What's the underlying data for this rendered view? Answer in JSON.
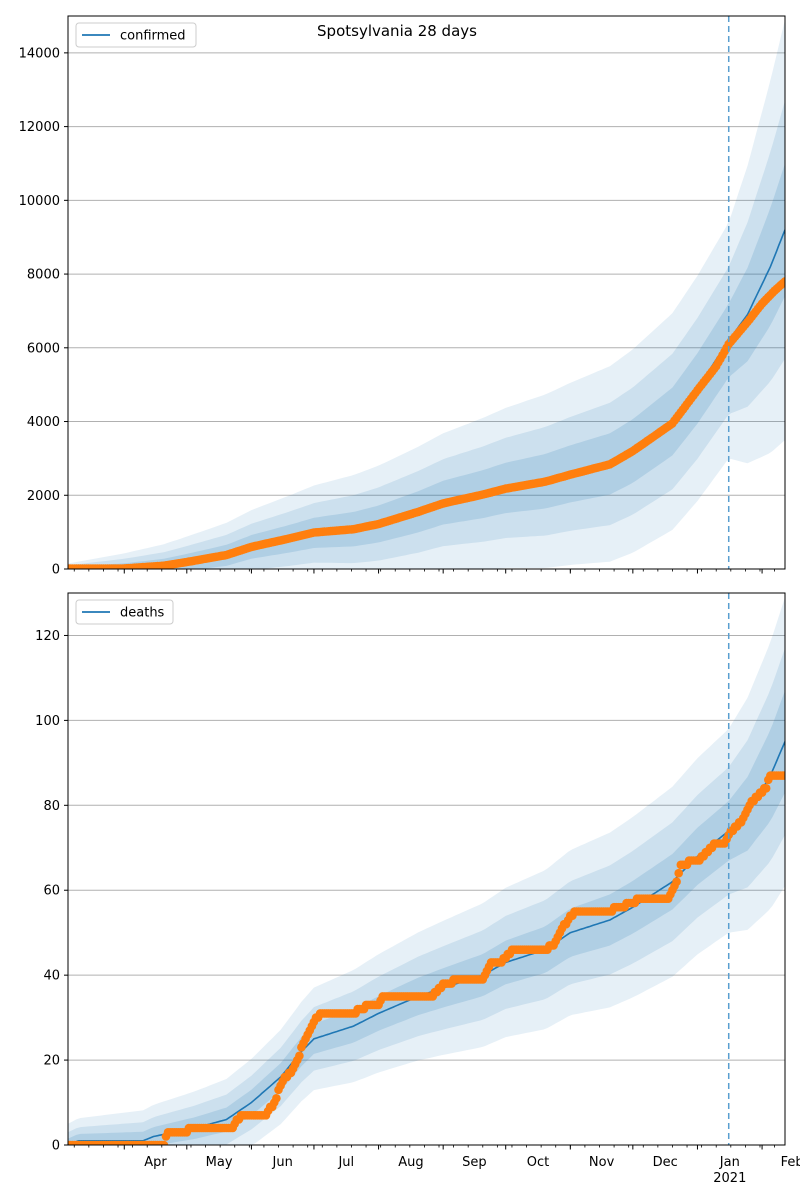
{
  "figure": {
    "title": "Spotsylvania 28 days"
  },
  "x_axis": {
    "months": [
      "Apr",
      "May",
      "Jun",
      "Jul",
      "Aug",
      "Sep",
      "Oct",
      "Nov",
      "Dec",
      "Jan",
      "Feb"
    ],
    "year_label": "2021"
  },
  "colors": {
    "model": "#1f77b4",
    "observed": "#ff7f0e",
    "band": "#1f77b4",
    "grid": "#b0b0b0",
    "vline": "#5a9fd0"
  },
  "chart_data": [
    {
      "type": "line",
      "legend": "confirmed",
      "legend_position": "top-left",
      "grid": "y",
      "x_range": [
        "2020-03-05",
        "2021-02-12"
      ],
      "ylim": [
        0,
        15000
      ],
      "yticks": [
        0,
        2000,
        4000,
        6000,
        8000,
        10000,
        12000,
        14000
      ],
      "forecast_start": "2021-01-16",
      "model": {
        "name": "confirmed",
        "points": [
          [
            "2020-03-05",
            0
          ],
          [
            "2020-04-01",
            15
          ],
          [
            "2020-04-20",
            80
          ],
          [
            "2020-05-01",
            180
          ],
          [
            "2020-05-20",
            370
          ],
          [
            "2020-06-01",
            600
          ],
          [
            "2020-06-20",
            830
          ],
          [
            "2020-07-01",
            980
          ],
          [
            "2020-07-20",
            1080
          ],
          [
            "2020-08-01",
            1220
          ],
          [
            "2020-08-20",
            1550
          ],
          [
            "2020-09-01",
            1800
          ],
          [
            "2020-09-20",
            2030
          ],
          [
            "2020-10-01",
            2200
          ],
          [
            "2020-10-20",
            2380
          ],
          [
            "2020-11-01",
            2580
          ],
          [
            "2020-11-20",
            2850
          ],
          [
            "2020-12-01",
            3200
          ],
          [
            "2020-12-20",
            4000
          ],
          [
            "2021-01-01",
            4900
          ],
          [
            "2021-01-16",
            6200
          ],
          [
            "2021-01-25",
            6900
          ],
          [
            "2021-02-05",
            8200
          ],
          [
            "2021-02-12",
            9200
          ]
        ]
      },
      "observed": {
        "points": [
          [
            "2020-03-05",
            10
          ],
          [
            "2020-04-01",
            15
          ],
          [
            "2020-04-20",
            90
          ],
          [
            "2020-05-01",
            190
          ],
          [
            "2020-05-20",
            380
          ],
          [
            "2020-06-01",
            600
          ],
          [
            "2020-06-20",
            840
          ],
          [
            "2020-07-01",
            990
          ],
          [
            "2020-07-20",
            1080
          ],
          [
            "2020-08-01",
            1220
          ],
          [
            "2020-08-20",
            1550
          ],
          [
            "2020-09-01",
            1780
          ],
          [
            "2020-09-20",
            2020
          ],
          [
            "2020-10-01",
            2180
          ],
          [
            "2020-10-20",
            2370
          ],
          [
            "2020-11-01",
            2560
          ],
          [
            "2020-11-20",
            2840
          ],
          [
            "2020-12-01",
            3200
          ],
          [
            "2020-12-20",
            3950
          ],
          [
            "2021-01-01",
            4850
          ],
          [
            "2021-01-10",
            5500
          ],
          [
            "2021-01-16",
            6100
          ],
          [
            "2021-01-25",
            6700
          ],
          [
            "2021-02-01",
            7200
          ],
          [
            "2021-02-07",
            7550
          ],
          [
            "2021-02-12",
            7800
          ]
        ]
      },
      "bands": [
        {
          "spread": [
            150,
            3200,
            5700
          ]
        },
        {
          "spread": [
            100,
            2000,
            3500
          ]
        },
        {
          "spread": [
            60,
            1000,
            1800
          ]
        }
      ]
    },
    {
      "type": "line",
      "legend": "deaths",
      "legend_position": "top-left",
      "grid": "y",
      "x_range": [
        "2020-03-05",
        "2021-02-12"
      ],
      "ylim": [
        0,
        130
      ],
      "yticks": [
        0,
        20,
        40,
        60,
        80,
        100,
        120
      ],
      "forecast_start": "2021-01-16",
      "model": {
        "name": "deaths",
        "points": [
          [
            "2020-03-05",
            0
          ],
          [
            "2020-03-10",
            1
          ],
          [
            "2020-04-10",
            1
          ],
          [
            "2020-04-15",
            2
          ],
          [
            "2020-05-05",
            4
          ],
          [
            "2020-05-20",
            6
          ],
          [
            "2020-06-01",
            10
          ],
          [
            "2020-06-15",
            16
          ],
          [
            "2020-06-25",
            22
          ],
          [
            "2020-07-01",
            25
          ],
          [
            "2020-07-20",
            28
          ],
          [
            "2020-08-01",
            31
          ],
          [
            "2020-08-20",
            35
          ],
          [
            "2020-09-01",
            37
          ],
          [
            "2020-09-20",
            40
          ],
          [
            "2020-10-01",
            43
          ],
          [
            "2020-10-20",
            46
          ],
          [
            "2020-11-01",
            50
          ],
          [
            "2020-11-20",
            53
          ],
          [
            "2020-12-01",
            56
          ],
          [
            "2020-12-20",
            62
          ],
          [
            "2021-01-01",
            68
          ],
          [
            "2021-01-16",
            74
          ],
          [
            "2021-01-25",
            78
          ],
          [
            "2021-02-05",
            87
          ],
          [
            "2021-02-12",
            95
          ]
        ]
      },
      "observed": {
        "points": [
          [
            "2020-03-05",
            0
          ],
          [
            "2020-04-20",
            0
          ],
          [
            "2020-04-22",
            3
          ],
          [
            "2020-05-01",
            3
          ],
          [
            "2020-05-03",
            4
          ],
          [
            "2020-05-23",
            4
          ],
          [
            "2020-05-25",
            6
          ],
          [
            "2020-05-28",
            7
          ],
          [
            "2020-06-08",
            7
          ],
          [
            "2020-06-12",
            10
          ],
          [
            "2020-06-16",
            15
          ],
          [
            "2020-06-20",
            17
          ],
          [
            "2020-06-24",
            21
          ],
          [
            "2020-06-26",
            24
          ],
          [
            "2020-06-28",
            26
          ],
          [
            "2020-07-01",
            29
          ],
          [
            "2020-07-05",
            31
          ],
          [
            "2020-07-20",
            31
          ],
          [
            "2020-07-24",
            32
          ],
          [
            "2020-07-28",
            33
          ],
          [
            "2020-08-01",
            33
          ],
          [
            "2020-08-03",
            35
          ],
          [
            "2020-08-27",
            35
          ],
          [
            "2020-09-01",
            38
          ],
          [
            "2020-09-10",
            39
          ],
          [
            "2020-09-20",
            39
          ],
          [
            "2020-09-24",
            43
          ],
          [
            "2020-09-28",
            43
          ],
          [
            "2020-10-01",
            44
          ],
          [
            "2020-10-05",
            46
          ],
          [
            "2020-10-20",
            46
          ],
          [
            "2020-10-24",
            47
          ],
          [
            "2020-10-27",
            50
          ],
          [
            "2020-11-01",
            54
          ],
          [
            "2020-11-05",
            55
          ],
          [
            "2020-11-20",
            55
          ],
          [
            "2020-11-24",
            56
          ],
          [
            "2020-12-01",
            57
          ],
          [
            "2020-12-05",
            58
          ],
          [
            "2020-12-18",
            58
          ],
          [
            "2020-12-22",
            62
          ],
          [
            "2020-12-24",
            66
          ],
          [
            "2021-01-01",
            67
          ],
          [
            "2021-01-06",
            69
          ],
          [
            "2021-01-10",
            71
          ],
          [
            "2021-01-14",
            71
          ],
          [
            "2021-01-17",
            74
          ],
          [
            "2021-01-22",
            76
          ],
          [
            "2021-01-26",
            80
          ],
          [
            "2021-01-30",
            82
          ],
          [
            "2021-02-03",
            84
          ],
          [
            "2021-02-05",
            87
          ],
          [
            "2021-02-12",
            87
          ]
        ]
      },
      "bands": [
        {
          "spread": [
            5,
            24,
            34
          ]
        },
        {
          "spread": [
            3,
            15,
            22
          ]
        },
        {
          "spread": [
            1.5,
            7,
            12
          ]
        }
      ]
    }
  ]
}
